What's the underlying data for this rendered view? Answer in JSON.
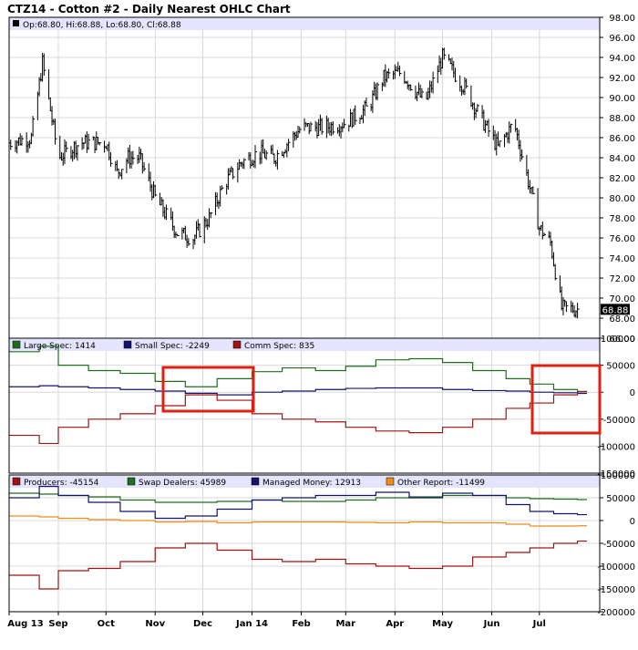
{
  "title": "CTZ14 - Cotton #2 - Daily Nearest OHLC Chart",
  "colors": {
    "header_band": "#e4e4ff",
    "large_spec": "#1e6e1e",
    "small_spec": "#14146e",
    "comm_spec": "#a01414",
    "producers": "#a01414",
    "swap_dealers": "#1e6e1e",
    "managed_money": "#14146e",
    "other_report": "#f08c14",
    "highlight": "#e02010",
    "last_price_bg": "#000000"
  },
  "x_axis_labels": [
    "Aug 13",
    "Sep",
    "Oct",
    "Nov",
    "Dec",
    "Jan 14",
    "Feb",
    "Mar",
    "Apr",
    "May",
    "Jun",
    "Jul"
  ],
  "chart_data": [
    {
      "type": "ohlc",
      "legend": "Op:68.80, Hi:68.88, Lo:68.80, Cl:68.88",
      "y_ticks": [
        "98.00",
        "96.00",
        "94.00",
        "92.00",
        "90.00",
        "88.00",
        "86.00",
        "84.00",
        "82.00",
        "80.00",
        "78.00",
        "76.00",
        "74.00",
        "72.00",
        "70.00",
        "68.00",
        "66.00"
      ],
      "ylim": [
        66,
        98
      ],
      "last_price": "68.88",
      "x": [
        "2013-08-01",
        "2013-08-15",
        "2013-08-22",
        "2013-09-01",
        "2013-09-15",
        "2013-10-01",
        "2013-10-08",
        "2013-10-15",
        "2013-10-22",
        "2013-11-01",
        "2013-11-15",
        "2013-11-25",
        "2013-12-05",
        "2013-12-15",
        "2013-12-25",
        "2014-01-05",
        "2014-01-15",
        "2014-02-01",
        "2014-02-15",
        "2014-03-01",
        "2014-03-15",
        "2014-03-25",
        "2014-04-05",
        "2014-04-20",
        "2014-05-01",
        "2014-05-15",
        "2014-05-25",
        "2014-06-05",
        "2014-06-15",
        "2014-06-25",
        "2014-07-01",
        "2014-07-08",
        "2014-07-15",
        "2014-07-25"
      ],
      "close": [
        85.5,
        86.0,
        93.5,
        84.0,
        85.5,
        85.5,
        82.5,
        84.0,
        84.0,
        80.0,
        76.5,
        76.0,
        78.0,
        81.5,
        83.5,
        84.5,
        84.0,
        87.0,
        87.0,
        87.5,
        89.0,
        92.0,
        92.5,
        89.5,
        94.0,
        91.0,
        88.0,
        85.0,
        87.5,
        81.0,
        77.0,
        75.5,
        69.0,
        68.88
      ]
    },
    {
      "type": "line",
      "legend_entries": [
        "Large Spec: 1414",
        "Small Spec: -2249",
        "Comm Spec: 835"
      ],
      "y_ticks": [
        "100000",
        "50000",
        "0",
        "-50000",
        "-100000",
        "-150000"
      ],
      "ylim": [
        -150000,
        100000
      ],
      "x": [
        "2013-08-01",
        "2013-08-20",
        "2013-09-01",
        "2013-09-20",
        "2013-10-10",
        "2013-11-01",
        "2013-11-20",
        "2013-12-10",
        "2014-01-01",
        "2014-01-20",
        "2014-02-10",
        "2014-03-01",
        "2014-03-20",
        "2014-04-10",
        "2014-05-01",
        "2014-05-20",
        "2014-06-10",
        "2014-06-25",
        "2014-07-10",
        "2014-07-25"
      ],
      "series": [
        {
          "name": "Large Spec: 1414",
          "values": [
            75000,
            85000,
            50000,
            40000,
            35000,
            20000,
            10000,
            25000,
            38000,
            45000,
            40000,
            48000,
            60000,
            62000,
            55000,
            40000,
            25000,
            15000,
            5000,
            1414
          ]
        },
        {
          "name": "Small Spec: -2249",
          "values": [
            10000,
            12000,
            10000,
            8000,
            5000,
            2000,
            -2000,
            -5000,
            0,
            2000,
            5000,
            7000,
            8000,
            8000,
            5000,
            3000,
            2000,
            0,
            -1000,
            -2249
          ]
        },
        {
          "name": "Comm Spec: 835",
          "values": [
            -80000,
            -95000,
            -65000,
            -50000,
            -40000,
            -25000,
            -5000,
            -15000,
            -40000,
            -50000,
            -55000,
            -65000,
            -72000,
            -75000,
            -65000,
            -50000,
            -30000,
            -20000,
            -5000,
            835
          ]
        }
      ]
    },
    {
      "type": "line",
      "legend_entries": [
        "Producers: -45154",
        "Swap Dealers: 45989",
        "Managed Money: 12913",
        "Other Report: -11499"
      ],
      "y_ticks": [
        "100000",
        "50000",
        "0",
        "-50000",
        "-100000",
        "-150000",
        "-200000"
      ],
      "ylim": [
        -200000,
        100000
      ],
      "x": [
        "2013-08-01",
        "2013-08-20",
        "2013-09-01",
        "2013-09-20",
        "2013-10-10",
        "2013-11-01",
        "2013-11-20",
        "2013-12-10",
        "2014-01-01",
        "2014-01-20",
        "2014-02-10",
        "2014-03-01",
        "2014-03-20",
        "2014-04-10",
        "2014-05-01",
        "2014-05-20",
        "2014-06-10",
        "2014-06-25",
        "2014-07-10",
        "2014-07-25"
      ],
      "series": [
        {
          "name": "Producers: -45154",
          "values": [
            -120000,
            -150000,
            -110000,
            -105000,
            -90000,
            -60000,
            -50000,
            -65000,
            -85000,
            -90000,
            -85000,
            -95000,
            -100000,
            -105000,
            -100000,
            -80000,
            -70000,
            -60000,
            -50000,
            -45154
          ]
        },
        {
          "name": "Swap Dealers: 45989",
          "values": [
            60000,
            58000,
            55000,
            52000,
            45000,
            40000,
            40000,
            42000,
            45000,
            42000,
            42000,
            45000,
            50000,
            52000,
            55000,
            55000,
            50000,
            48000,
            47000,
            45989
          ]
        },
        {
          "name": "Managed Money: 12913",
          "values": [
            50000,
            75000,
            55000,
            40000,
            20000,
            5000,
            10000,
            25000,
            45000,
            50000,
            55000,
            55000,
            62000,
            50000,
            60000,
            55000,
            35000,
            20000,
            15000,
            12913
          ]
        },
        {
          "name": "Other Report: -11499",
          "values": [
            10000,
            8000,
            5000,
            2000,
            0,
            -3000,
            -2000,
            -5000,
            -3000,
            -3000,
            -3000,
            -4000,
            -5000,
            -3000,
            -5000,
            -5000,
            -8000,
            -12000,
            -12000,
            -11499
          ]
        }
      ]
    }
  ]
}
